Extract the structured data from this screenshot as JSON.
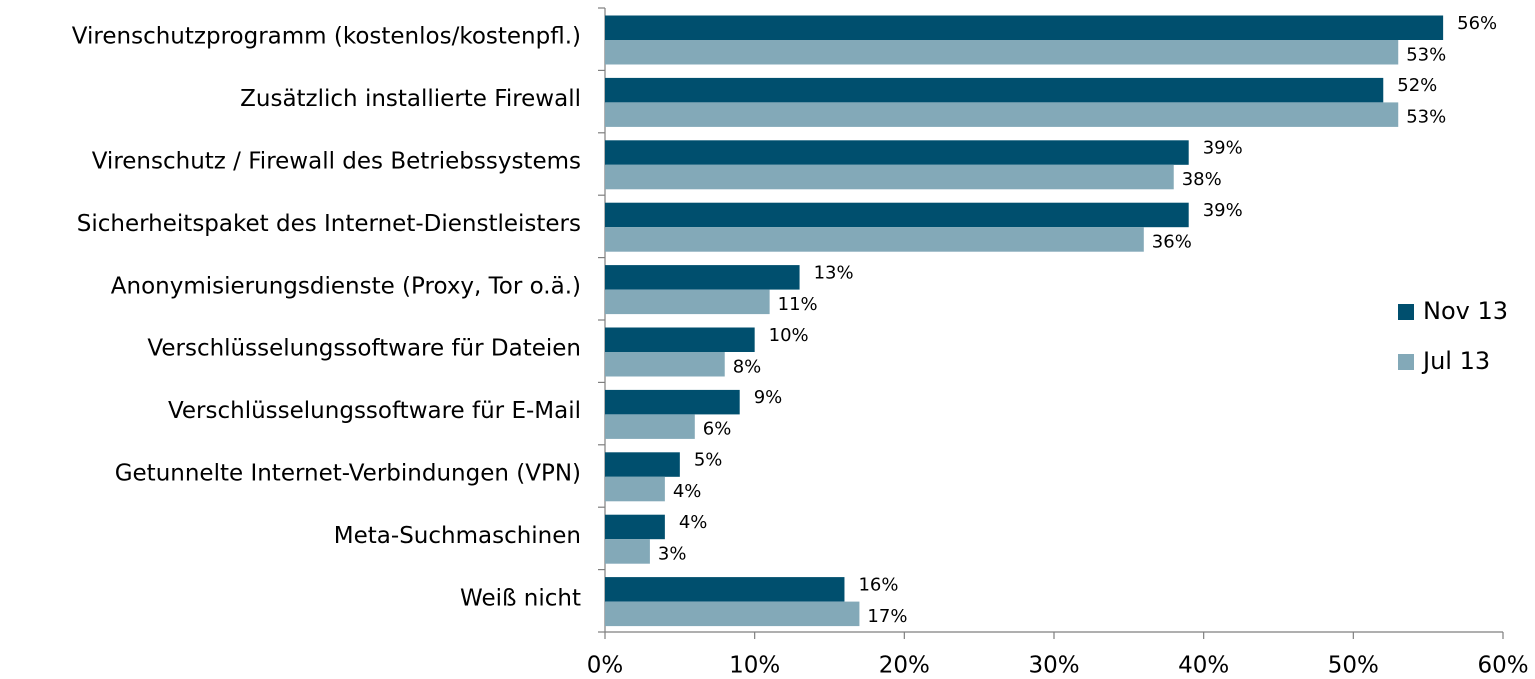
{
  "chart_data": {
    "type": "bar",
    "orientation": "horizontal",
    "categories": [
      "Virenschutzprogramm (kostenlos/kostenpfl.)",
      "Zusätzlich installierte Firewall",
      "Virenschutz / Firewall des Betriebssystems",
      "Sicherheitspaket des Internet-Dienstleisters",
      "Anonymisierungsdienste (Proxy, Tor o.ä.)",
      "Verschlüsselungssoftware für Dateien",
      "Verschlüsselungssoftware für E-Mail",
      "Getunnelte Internet-Verbindungen (VPN)",
      "Meta-Suchmaschinen",
      "Weiß nicht"
    ],
    "series": [
      {
        "name": "Nov 13",
        "color": "#004f6e",
        "values": [
          56,
          52,
          39,
          39,
          13,
          10,
          9,
          5,
          4,
          16
        ],
        "value_labels": [
          "56%",
          "52%",
          "39%",
          "39%",
          "13%",
          "10%",
          "9%",
          "5%",
          "4%",
          "16%"
        ]
      },
      {
        "name": "Jul 13",
        "color": "#83a9b8",
        "values": [
          53,
          53,
          38,
          36,
          11,
          8,
          6,
          4,
          3,
          17
        ],
        "value_labels": [
          "53%",
          "53%",
          "38%",
          "36%",
          "11%",
          "8%",
          "6%",
          "4%",
          "3%",
          "17%"
        ]
      }
    ],
    "xlim": [
      0,
      60
    ],
    "xticks": [
      {
        "value": 0,
        "label": "0%"
      },
      {
        "value": 10,
        "label": "10%"
      },
      {
        "value": 20,
        "label": "20%"
      },
      {
        "value": 30,
        "label": "30%"
      },
      {
        "value": 40,
        "label": "40%"
      },
      {
        "value": 50,
        "label": "50%"
      },
      {
        "value": 60,
        "label": "60%"
      }
    ],
    "legend": "right"
  }
}
